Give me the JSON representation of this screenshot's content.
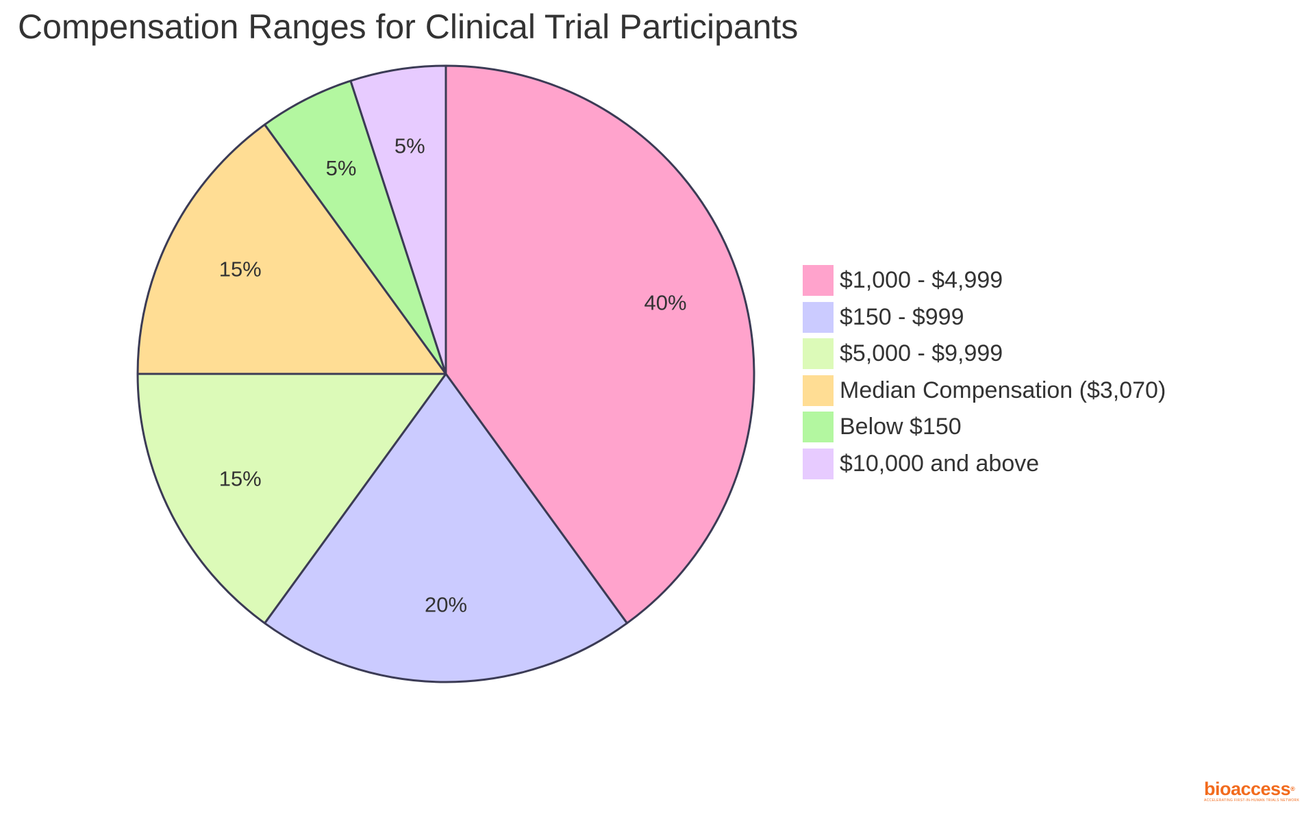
{
  "chart_data": {
    "type": "pie",
    "title": "Compensation Ranges for Clinical Trial Participants",
    "slices": [
      {
        "label": "$1,000 - $4,999",
        "value": 40,
        "display": "40%",
        "color": "#ffa3cc"
      },
      {
        "label": "$150 - $999",
        "value": 20,
        "display": "20%",
        "color": "#cbcbff"
      },
      {
        "label": "$5,000 - $9,999",
        "value": 15,
        "display": "15%",
        "color": "#dcfab8"
      },
      {
        "label": "Median Compensation ($3,070)",
        "value": 15,
        "display": "15%",
        "color": "#ffdd94"
      },
      {
        "label": "Below $150",
        "value": 5,
        "display": "5%",
        "color": "#b3f7a0"
      },
      {
        "label": "$10,000 and above",
        "value": 5,
        "display": "5%",
        "color": "#e7cbff"
      }
    ],
    "legend_position": "right",
    "start": "top, clockwise"
  },
  "branding": {
    "logo_text": "bioaccess",
    "logo_mark": "®",
    "tagline": "ACCELERATING FIRST-IN-HUMAN TRIALS NETWORK",
    "color": "#f26b1d"
  }
}
